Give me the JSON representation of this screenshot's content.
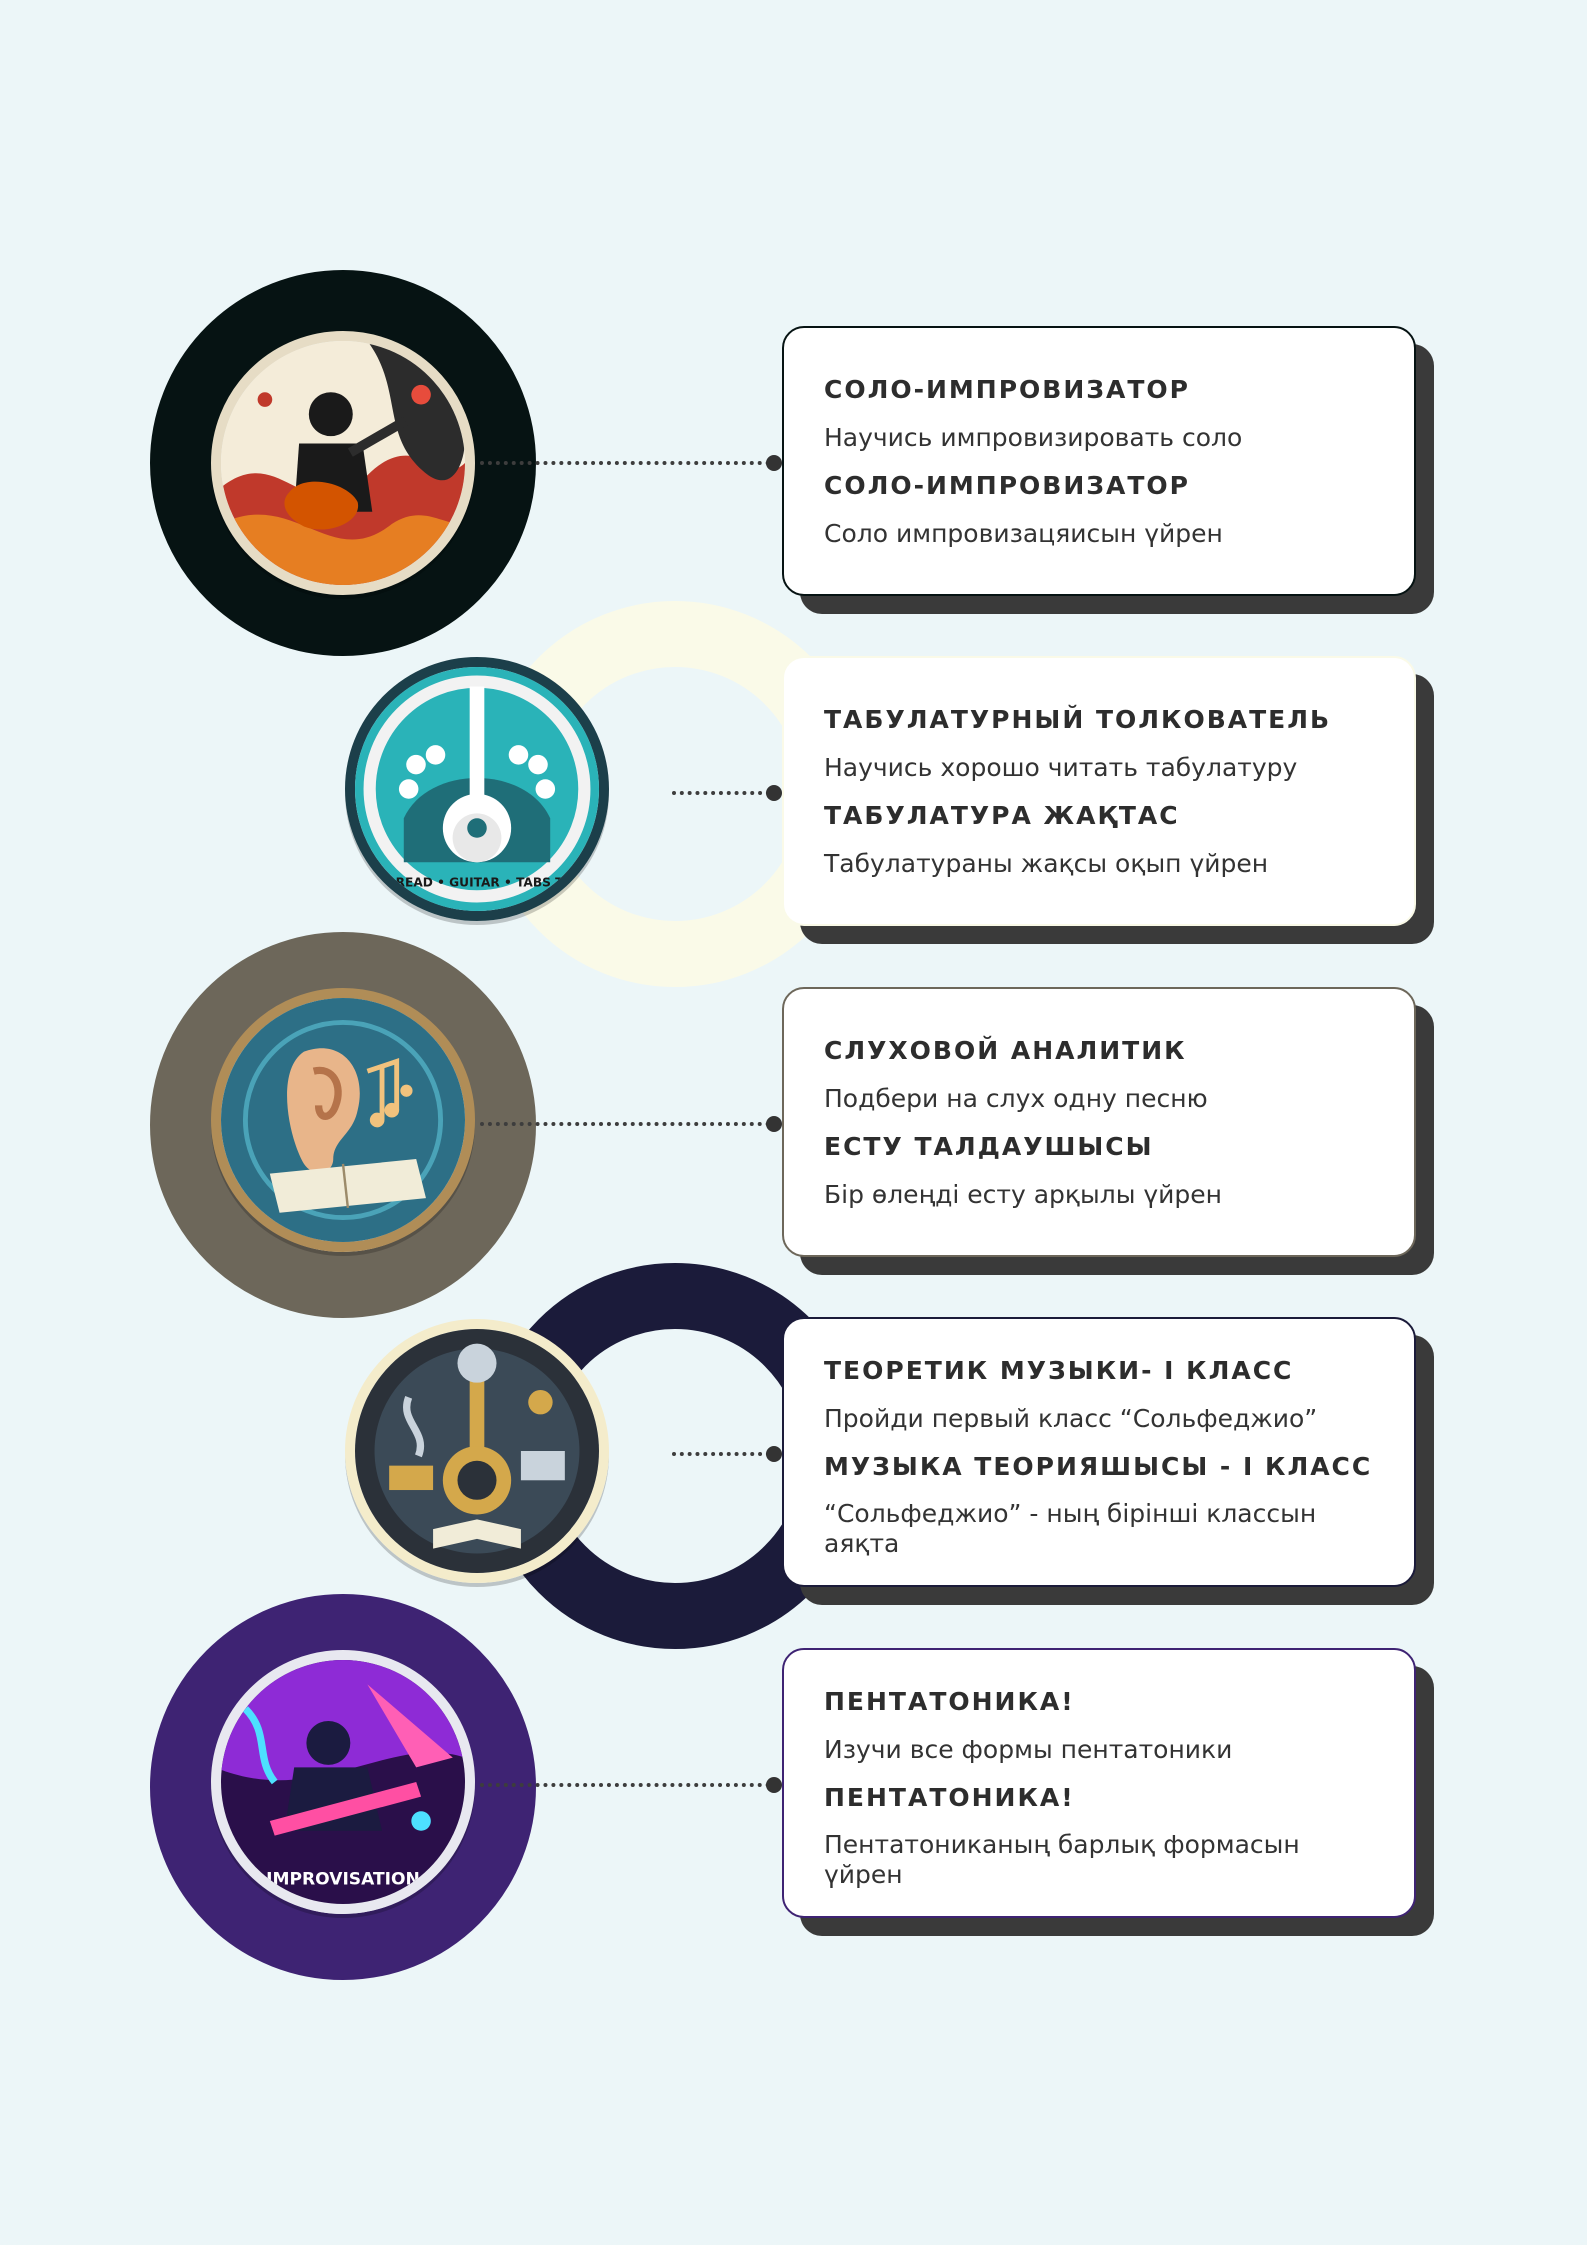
{
  "colors": {
    "background": "#ecf6f8",
    "arc_1": "#061313",
    "arc_2": "#fafae8",
    "arc_3": "#6d675a",
    "arc_4": "#1b1b3a",
    "arc_5": "#3e2373"
  },
  "steps": [
    {
      "badge_icon": "guitarist-badge-icon",
      "title_ru": "СОЛО-ИМПРОВИЗАТОР",
      "text_ru": "Научись импровизировать соло",
      "title_kz": "СОЛО-ИМПРОВИЗАТОР",
      "text_kz": "Соло импровизацяисын үйрен"
    },
    {
      "badge_icon": "guitar-tabs-badge-icon",
      "badge_caption": "TO READ • GUITAR • TABS TAB",
      "title_ru": "ТАБУЛАТУРНЫЙ ТОЛКОВАТЕЛЬ",
      "text_ru": "Научись хорошо читать табулатуру",
      "title_kz": "ТАБУЛАТУРА ЖАҚТАС",
      "text_kz": "Табулатураны жақсы оқып үйрен"
    },
    {
      "badge_icon": "ear-music-badge-icon",
      "title_ru": "СЛУХОВОЙ АНАЛИТИК",
      "text_ru": "Подбери на слух одну песню",
      "title_kz": "ЕСТУ ТАЛДАУШЫСЫ",
      "text_kz": "Бір өлеңді есту арқылы үйрен"
    },
    {
      "badge_icon": "music-theory-badge-icon",
      "title_ru": "ТЕОРЕТИК МУЗЫКИ- I КЛАСС",
      "text_ru": "Пройди первый класс “Сольфеджио”",
      "title_kz": "МУЗЫКА ТЕОРИЯШЫСЫ - I КЛАСС",
      "text_kz": "“Сольфеджио” - ның бірінші классын аяқта"
    },
    {
      "badge_icon": "improvisation-badge-icon",
      "badge_caption": "·IMPROVISATION·",
      "title_ru": "ПЕНТАТОНИКА!",
      "text_ru": "Изучи все формы пентатоники",
      "title_kz": "ПЕНТАТОНИКА!",
      "text_kz": "Пентатониканың барлық формасын үйрен"
    }
  ]
}
